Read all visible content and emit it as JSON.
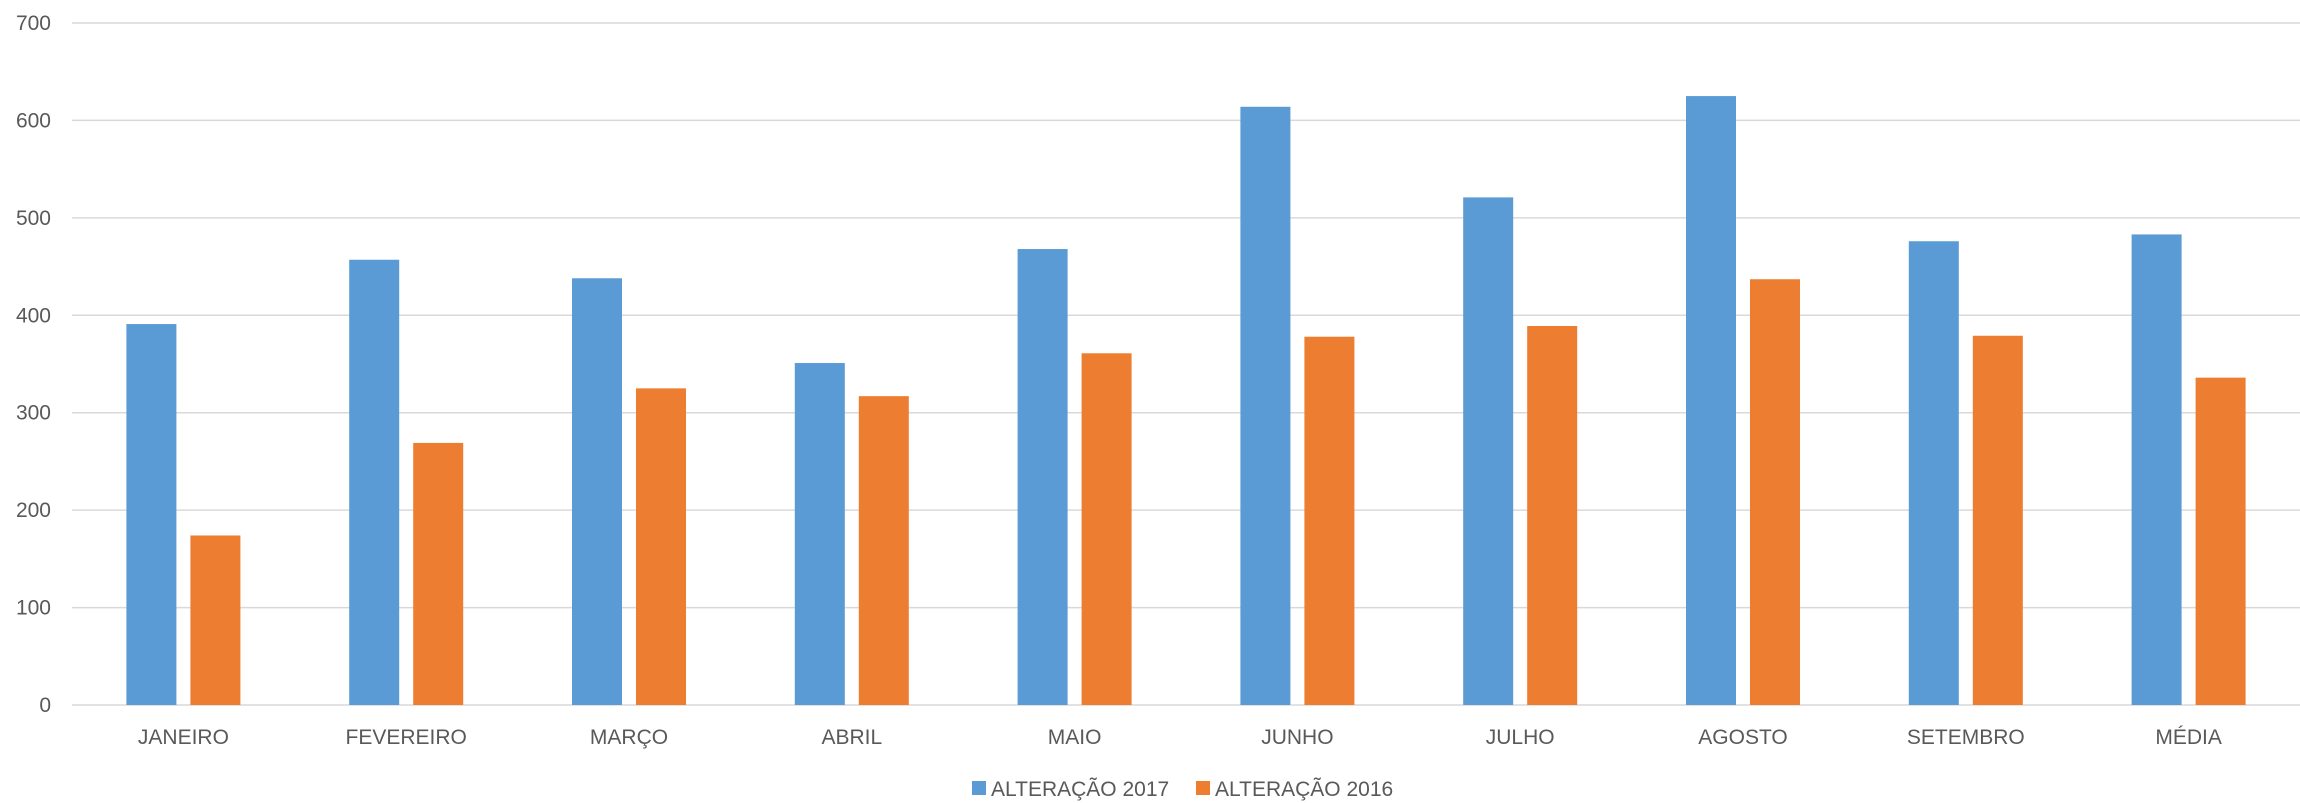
{
  "chart_data": {
    "type": "bar",
    "title": "",
    "xlabel": "",
    "ylabel": "",
    "categories": [
      "JANEIRO",
      "FEVEREIRO",
      "MARÇO",
      "ABRIL",
      "MAIO",
      "JUNHO",
      "JULHO",
      "AGOSTO",
      "SETEMBRO",
      "MÉDIA"
    ],
    "series": [
      {
        "name": "ALTERAÇÃO 2017",
        "color": "#5b9bd5",
        "values": [
          391,
          457,
          438,
          351,
          468,
          614,
          521,
          625,
          476,
          483
        ]
      },
      {
        "name": "ALTERAÇÃO 2016",
        "color": "#ed7d31",
        "values": [
          174,
          269,
          325,
          317,
          361,
          378,
          389,
          437,
          379,
          336
        ]
      }
    ],
    "ylim": [
      0,
      700
    ],
    "yticks": [
      0,
      100,
      200,
      300,
      400,
      500,
      600,
      700
    ],
    "grid": true,
    "legend_position": "bottom-center"
  }
}
